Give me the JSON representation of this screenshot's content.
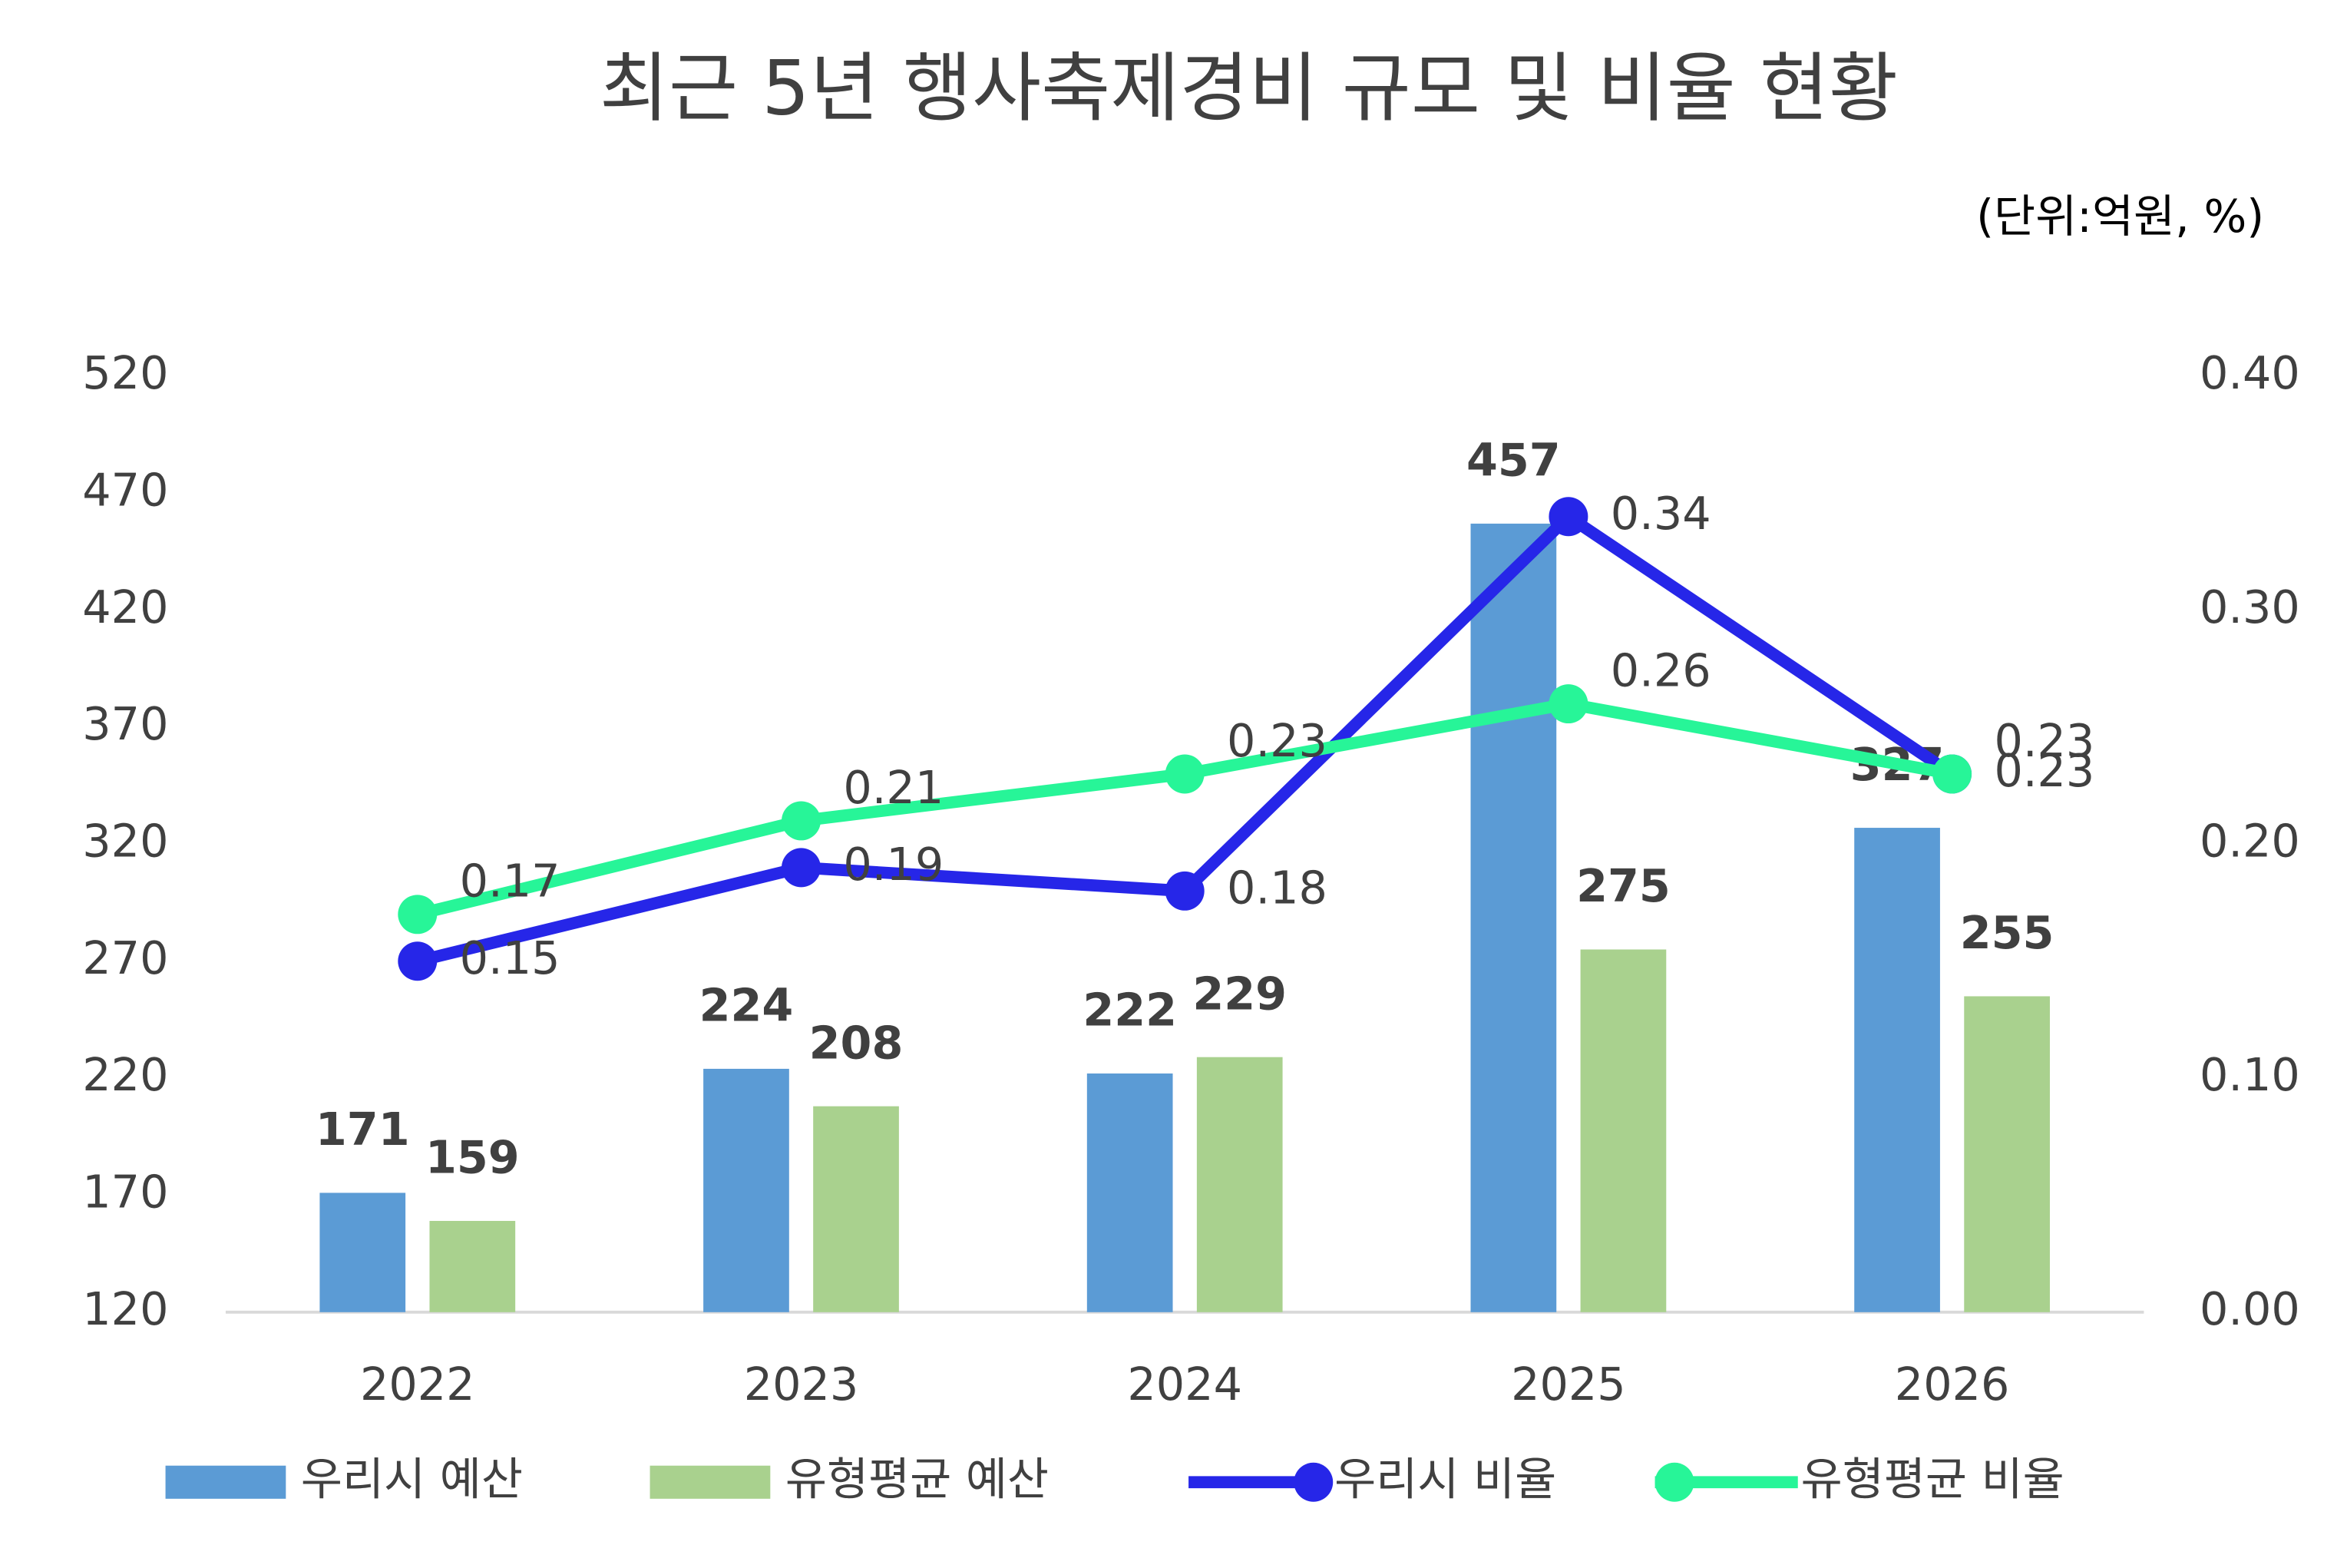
{
  "chart_data": {
    "type": "bar",
    "title": "최근 5년 행사축제경비 규모 및 비율 현황",
    "subtitle": "(단위:억원, %)",
    "categories": [
      "2022",
      "2023",
      "2024",
      "2025",
      "2026"
    ],
    "ylim": [
      120,
      520
    ],
    "yticks": [
      120,
      170,
      220,
      270,
      320,
      370,
      420,
      470,
      520
    ],
    "y2lim": [
      0,
      0.4
    ],
    "y2ticks": [
      {
        "value": 0,
        "label": "0.00"
      },
      {
        "value": 0.1,
        "label": "0.10"
      },
      {
        "value": 0.2,
        "label": "0.20"
      },
      {
        "value": 0.3,
        "label": "0.30"
      },
      {
        "value": 0.4,
        "label": "0.40"
      }
    ],
    "series": [
      {
        "name": "우리시 예산",
        "type": "bar",
        "color": "#5b9bd5",
        "values": [
          171,
          224,
          222,
          457,
          327
        ]
      },
      {
        "name": "유형평균 예산",
        "type": "bar",
        "color": "#a9d18e",
        "values": [
          159,
          208,
          229,
          275,
          255
        ]
      },
      {
        "name": "우리시 비율",
        "type": "line",
        "axis": "y2",
        "color": "#2626e8",
        "values": [
          0.15,
          0.19,
          0.18,
          0.34,
          0.23
        ]
      },
      {
        "name": "유형평균 비율",
        "type": "line",
        "axis": "y2",
        "color": "#27f598",
        "values": [
          0.17,
          0.21,
          0.23,
          0.26,
          0.23
        ]
      }
    ]
  }
}
